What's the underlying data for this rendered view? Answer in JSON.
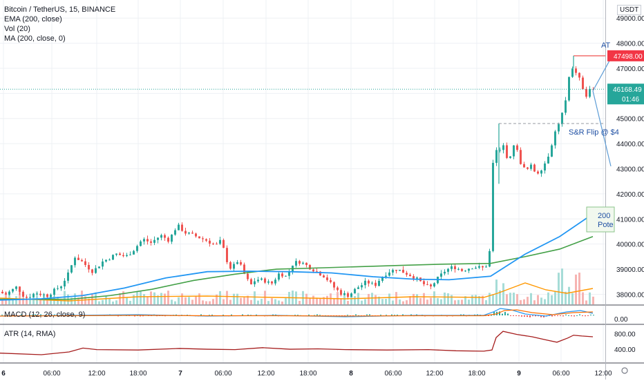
{
  "header": {
    "title": "Bitcoin / TetherUS, 15, BINANCE",
    "indicators": [
      "EMA (200, close)",
      "Vol (20)",
      "MA (200, close, 0)"
    ],
    "currency": "USDT"
  },
  "panes": {
    "macd_label": "MACD (12, 26, close, 9)",
    "atr_label": "ATR (14, RMA)"
  },
  "markers": {
    "last_price": "46168.49",
    "countdown": "01:46",
    "ath_level": "47498.00"
  },
  "annotations": {
    "ath_text": "AT",
    "flip_text": "S&R Flip @ $4",
    "box_line1": "200",
    "box_line2": "Pote"
  },
  "colors": {
    "up": "#26a69a",
    "down": "#ef5350",
    "ema": "#2196f3",
    "ma": "#43a047",
    "vol_ma": "#ff9800",
    "atr": "#a51c1c",
    "macd_line": "#2196f3",
    "signal_line": "#ff6d00",
    "annotation": "#2962ff"
  },
  "chart_data": {
    "type": "candlestick",
    "symbol": "Bitcoin / TetherUS",
    "interval": "15",
    "exchange": "BINANCE",
    "x_ticks": [
      "6",
      "06:00",
      "12:00",
      "18:00",
      "7",
      "06:00",
      "12:00",
      "18:00",
      "8",
      "06:00",
      "12:00",
      "18:00",
      "9",
      "06:00",
      "12:00"
    ],
    "y_ticks": [
      38000,
      39000,
      40000,
      41000,
      42000,
      43000,
      44000,
      45000,
      46000,
      47000,
      48000,
      49000
    ],
    "y_tick_labels": [
      "38000.00",
      "39000.00",
      "40000.00",
      "41000.00",
      "42000.00",
      "43000.00",
      "44000.00",
      "45000.00",
      "46000.00",
      "47000.00",
      "48000.00",
      "49000.00"
    ],
    "ylim": [
      37600,
      49500
    ],
    "price_path": [
      [
        0,
        38100
      ],
      [
        12,
        38000
      ],
      [
        28,
        38300
      ],
      [
        40,
        37850
      ],
      [
        56,
        38050
      ],
      [
        72,
        37950
      ],
      [
        92,
        38350
      ],
      [
        102,
        38800
      ],
      [
        112,
        39500
      ],
      [
        122,
        39300
      ],
      [
        138,
        38900
      ],
      [
        152,
        39300
      ],
      [
        172,
        39600
      ],
      [
        186,
        39500
      ],
      [
        198,
        39800
      ],
      [
        210,
        40200
      ],
      [
        222,
        40050
      ],
      [
        236,
        40350
      ],
      [
        248,
        40150
      ],
      [
        260,
        40750
      ],
      [
        272,
        40450
      ],
      [
        288,
        40300
      ],
      [
        302,
        40150
      ],
      [
        316,
        39950
      ],
      [
        324,
        40150
      ],
      [
        330,
        39450
      ],
      [
        338,
        39000
      ],
      [
        348,
        39350
      ],
      [
        358,
        38750
      ],
      [
        366,
        38350
      ],
      [
        374,
        38600
      ],
      [
        386,
        38550
      ],
      [
        396,
        38400
      ],
      [
        408,
        38850
      ],
      [
        418,
        38700
      ],
      [
        428,
        39250
      ],
      [
        438,
        39300
      ],
      [
        450,
        39100
      ],
      [
        462,
        38900
      ],
      [
        474,
        38700
      ],
      [
        484,
        38350
      ],
      [
        496,
        38050
      ],
      [
        508,
        37950
      ],
      [
        520,
        38250
      ],
      [
        534,
        38500
      ],
      [
        546,
        38350
      ],
      [
        556,
        38700
      ],
      [
        566,
        38900
      ],
      [
        578,
        39000
      ],
      [
        590,
        38850
      ],
      [
        602,
        38700
      ],
      [
        614,
        38450
      ],
      [
        626,
        38250
      ],
      [
        636,
        38600
      ],
      [
        648,
        38950
      ],
      [
        660,
        39100
      ],
      [
        672,
        38950
      ],
      [
        688,
        39100
      ],
      [
        702,
        39050
      ],
      [
        710,
        39200
      ],
      [
        714,
        40200
      ],
      [
        718,
        44200
      ],
      [
        724,
        43500
      ],
      [
        732,
        44000
      ],
      [
        740,
        43200
      ],
      [
        748,
        44100
      ],
      [
        756,
        43300
      ],
      [
        764,
        42900
      ],
      [
        772,
        43100
      ],
      [
        780,
        42800
      ],
      [
        790,
        43100
      ],
      [
        798,
        43600
      ],
      [
        806,
        44400
      ],
      [
        814,
        44900
      ],
      [
        822,
        45700
      ],
      [
        828,
        46800
      ],
      [
        834,
        47000
      ],
      [
        842,
        46600
      ],
      [
        848,
        46100
      ],
      [
        852,
        45900
      ],
      [
        858,
        46168
      ]
    ],
    "ema_200": [
      [
        0,
        37770
      ],
      [
        60,
        37820
      ],
      [
        120,
        37950
      ],
      [
        180,
        38250
      ],
      [
        240,
        38650
      ],
      [
        300,
        38900
      ],
      [
        360,
        38920
      ],
      [
        420,
        38900
      ],
      [
        480,
        38850
      ],
      [
        540,
        38700
      ],
      [
        600,
        38600
      ],
      [
        650,
        38580
      ],
      [
        710,
        38720
      ],
      [
        760,
        39600
      ],
      [
        810,
        40300
      ],
      [
        858,
        41200
      ]
    ],
    "ma_200": [
      [
        0,
        37800
      ],
      [
        60,
        37800
      ],
      [
        100,
        37800
      ],
      [
        160,
        37950
      ],
      [
        220,
        38200
      ],
      [
        280,
        38550
      ],
      [
        340,
        38800
      ],
      [
        400,
        39000
      ],
      [
        460,
        39050
      ],
      [
        520,
        39100
      ],
      [
        580,
        39150
      ],
      [
        640,
        39200
      ],
      [
        710,
        39230
      ],
      [
        760,
        39500
      ],
      [
        810,
        39800
      ],
      [
        858,
        40300
      ]
    ],
    "macd": {
      "ytick": "0.00"
    },
    "atr": {
      "ytick_labels": [
        "800.00",
        "400.00"
      ],
      "values": [
        [
          0,
          300
        ],
        [
          60,
          260
        ],
        [
          100,
          330
        ],
        [
          120,
          430
        ],
        [
          140,
          390
        ],
        [
          200,
          380
        ],
        [
          260,
          420
        ],
        [
          300,
          400
        ],
        [
          340,
          390
        ],
        [
          380,
          440
        ],
        [
          420,
          400
        ],
        [
          460,
          410
        ],
        [
          500,
          390
        ],
        [
          560,
          380
        ],
        [
          620,
          390
        ],
        [
          660,
          360
        ],
        [
          700,
          350
        ],
        [
          712,
          380
        ],
        [
          718,
          700
        ],
        [
          728,
          860
        ],
        [
          748,
          780
        ],
        [
          770,
          720
        ],
        [
          790,
          640
        ],
        [
          806,
          580
        ],
        [
          822,
          690
        ],
        [
          830,
          760
        ],
        [
          842,
          740
        ],
        [
          858,
          720
        ]
      ]
    }
  }
}
